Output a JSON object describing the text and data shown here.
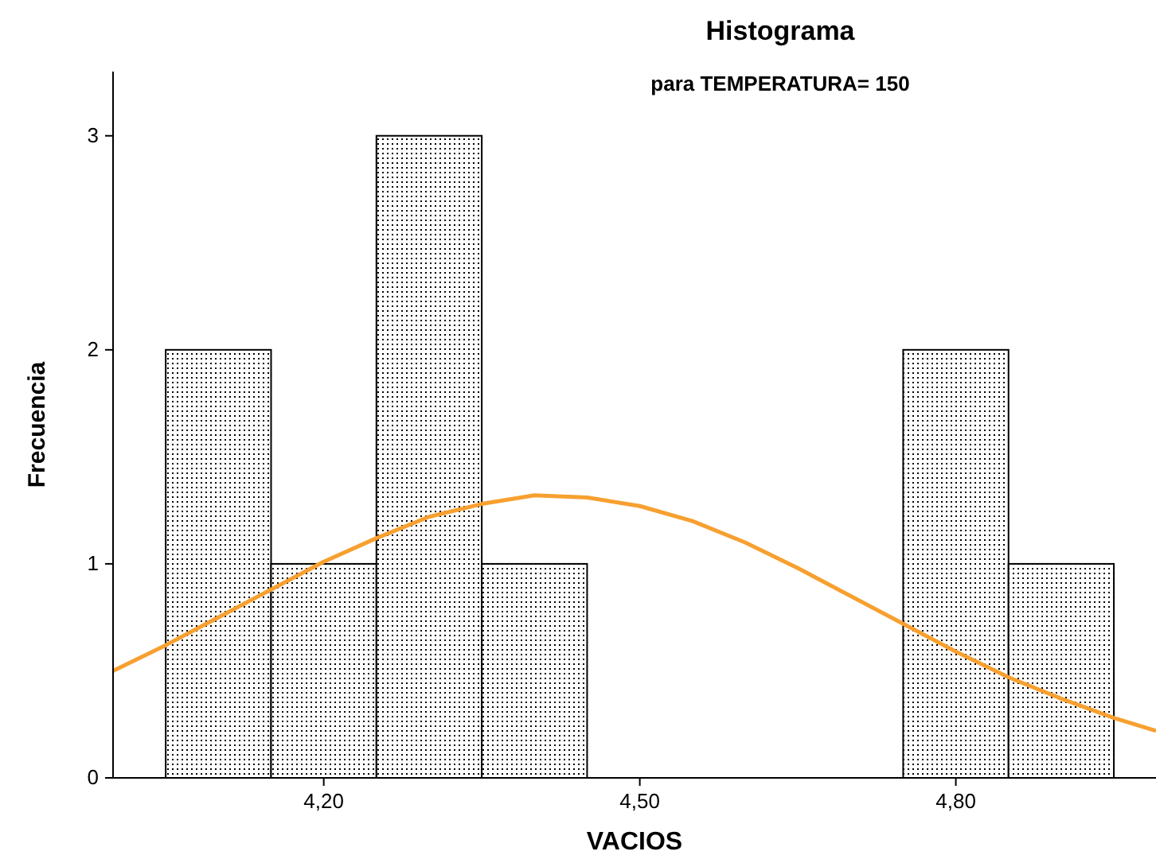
{
  "chart_data": {
    "type": "histogram",
    "title": "Histograma",
    "subtitle": "para TEMPERATURA= 150",
    "xlabel": "VACIOS",
    "ylabel": "Frecuencia",
    "bins": [
      4.05,
      4.15,
      4.25,
      4.35,
      4.45,
      4.55,
      4.65,
      4.75,
      4.85,
      4.95
    ],
    "values": [
      2,
      1,
      3,
      1,
      0,
      0,
      0,
      2,
      1
    ],
    "color": "#000000",
    "xlim": [
      4.0,
      4.99
    ],
    "xticks": [
      {
        "value": 4.2,
        "label": "4,20"
      },
      {
        "value": 4.5,
        "label": "4,50"
      },
      {
        "value": 4.8,
        "label": "4,80"
      }
    ],
    "ylim": [
      0,
      3.3
    ],
    "yticks": [
      0,
      1,
      2,
      3
    ],
    "series": [
      {
        "type": "line",
        "color": "#f7a030",
        "x": [
          4.0,
          4.05,
          4.1,
          4.15,
          4.2,
          4.25,
          4.3,
          4.35,
          4.4,
          4.45,
          4.5,
          4.55,
          4.6,
          4.65,
          4.7,
          4.75,
          4.8,
          4.85,
          4.9,
          4.95,
          4.99
        ],
        "values": [
          0.5,
          0.62,
          0.75,
          0.88,
          1.01,
          1.12,
          1.22,
          1.28,
          1.32,
          1.31,
          1.27,
          1.2,
          1.1,
          0.98,
          0.85,
          0.72,
          0.59,
          0.47,
          0.37,
          0.28,
          0.22
        ]
      }
    ]
  }
}
